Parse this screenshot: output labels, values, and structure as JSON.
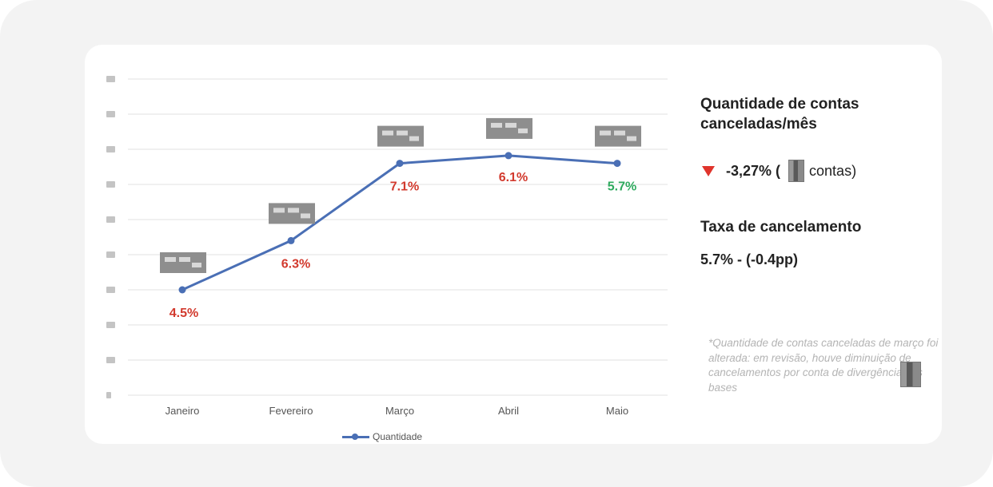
{
  "chart_data": {
    "type": "line",
    "categories": [
      "Janeiro",
      "Fevereiro",
      "Março",
      "Abril",
      "Maio"
    ],
    "series": [
      {
        "name": "Quantidade",
        "values": [
          3,
          4.4,
          6.6,
          6.82,
          6.6
        ],
        "color": "#4a6fb5"
      }
    ],
    "rate_labels": [
      "4.5%",
      "6.3%",
      "7.1%",
      "6.1%",
      "5.7%"
    ],
    "rate_label_colors": [
      "#d23a2e",
      "#d23a2e",
      "#d23a2e",
      "#d23a2e",
      "#2eaa5e"
    ],
    "value_labels_obscured": true,
    "y_axis_labels_obscured": true,
    "ylim": [
      0,
      9
    ],
    "y_ticks": [
      0,
      1,
      2,
      3,
      4,
      5,
      6,
      7,
      8
    ],
    "grid": true,
    "legend_position": "bottom"
  },
  "side_panel": {
    "title": "Quantidade de contas canceladas/mês",
    "delta_value": "-3,27% (",
    "delta_suffix": "contas)",
    "rate_title": "Taxa de cancelamento",
    "rate_value": "5.7% - (-0.4pp)",
    "footnote": "*Quantidade de contas canceladas de março foi alterada: em revisão,  houve diminuição de cancelamentos por conta de divergência nas bases"
  },
  "colors": {
    "line": "#4a6fb5",
    "negative": "#d23a2e",
    "positive": "#2eaa5e",
    "down_arrow": "#e0342c"
  },
  "icons": {
    "delta_indicator": "down-triangle-icon"
  }
}
